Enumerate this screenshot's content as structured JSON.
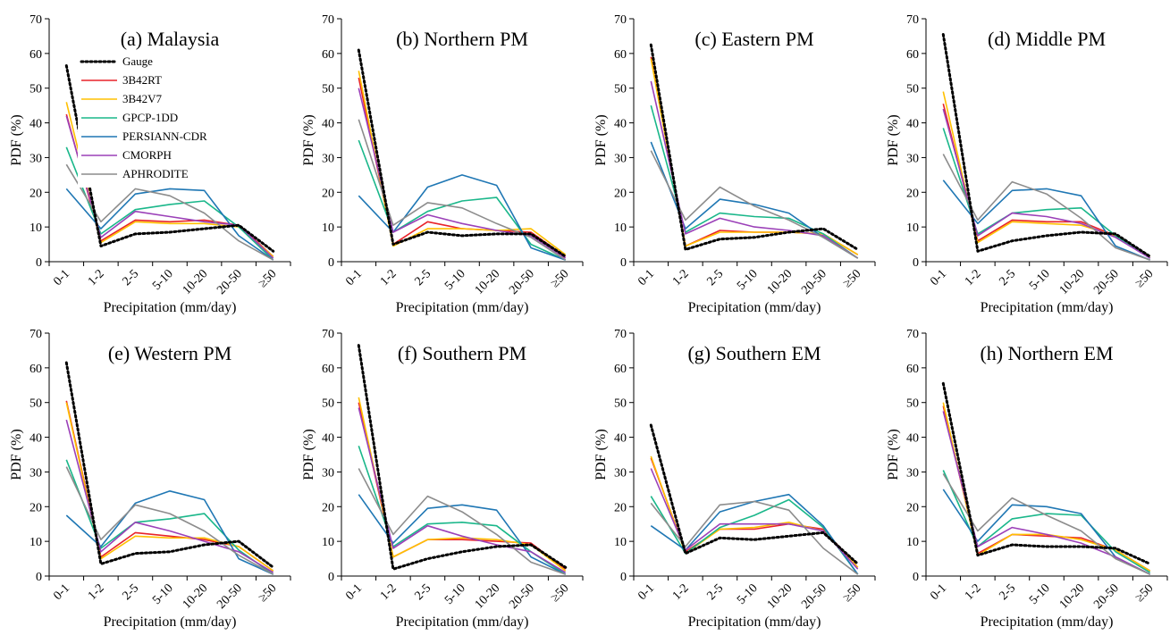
{
  "figure": {
    "legend": [
      {
        "name": "Gauge",
        "color": "#000000",
        "dashed": true
      },
      {
        "name": "3B42RT",
        "color": "#e8232a",
        "dashed": false
      },
      {
        "name": "3B42V7",
        "color": "#ffc000",
        "dashed": false
      },
      {
        "name": "GPCP-1DD",
        "color": "#1ab78a",
        "dashed": false
      },
      {
        "name": "PERSIANN-CDR",
        "color": "#1f77b4",
        "dashed": false
      },
      {
        "name": "CMORPH",
        "color": "#9b40b8",
        "dashed": false
      },
      {
        "name": "APHRODITE",
        "color": "#8c8c8c",
        "dashed": false
      }
    ]
  },
  "chart_data": [
    {
      "type": "line",
      "title": "(a) Malaysia",
      "xlabel": "Precipitation (mm/day)",
      "ylabel": "PDF (%)",
      "ylim": [
        0,
        70
      ],
      "yticks": [
        0,
        10,
        20,
        30,
        40,
        50,
        60,
        70
      ],
      "categories": [
        "0-1",
        "1-2",
        "2-5",
        "5-10",
        "10-20",
        "20-50",
        "≥50"
      ],
      "legend_position": "top-left",
      "series": [
        {
          "name": "Gauge",
          "values": [
            56.5,
            4.5,
            8.0,
            8.5,
            9.5,
            10.5,
            3.0
          ]
        },
        {
          "name": "3B42RT",
          "values": [
            42.5,
            6.0,
            12.0,
            11.5,
            12.0,
            10.5,
            1.5
          ]
        },
        {
          "name": "3B42V7",
          "values": [
            46.0,
            5.5,
            11.5,
            11.0,
            11.0,
            10.0,
            1.5
          ]
        },
        {
          "name": "GPCP-1DD",
          "values": [
            33.0,
            8.0,
            15.0,
            16.5,
            17.5,
            10.0,
            0.5
          ]
        },
        {
          "name": "PERSIANN-CDR",
          "values": [
            21.0,
            9.5,
            19.5,
            21.0,
            20.5,
            7.5,
            0.5
          ]
        },
        {
          "name": "CMORPH",
          "values": [
            42.0,
            7.0,
            14.5,
            13.0,
            11.5,
            10.5,
            1.0
          ]
        },
        {
          "name": "APHRODITE",
          "values": [
            28.0,
            11.5,
            21.0,
            19.0,
            14.0,
            6.0,
            0.5
          ]
        }
      ]
    },
    {
      "type": "line",
      "title": "(b) Northern PM",
      "xlabel": "Precipitation (mm/day)",
      "ylabel": "PDF (%)",
      "ylim": [
        0,
        70
      ],
      "yticks": [
        0,
        10,
        20,
        30,
        40,
        50,
        60,
        70
      ],
      "categories": [
        "0-1",
        "1-2",
        "2-5",
        "5-10",
        "10-20",
        "20-50",
        "≥50"
      ],
      "series": [
        {
          "name": "Gauge",
          "values": [
            61.0,
            5.0,
            8.5,
            7.5,
            8.0,
            8.0,
            1.5
          ]
        },
        {
          "name": "3B42RT",
          "values": [
            53.0,
            5.0,
            11.5,
            9.5,
            9.0,
            8.5,
            1.5
          ]
        },
        {
          "name": "3B42V7",
          "values": [
            55.0,
            4.5,
            9.5,
            9.5,
            9.0,
            9.5,
            2.0
          ]
        },
        {
          "name": "GPCP-1DD",
          "values": [
            35.0,
            8.5,
            14.5,
            17.5,
            18.5,
            5.0,
            0.5
          ]
        },
        {
          "name": "PERSIANN-CDR",
          "values": [
            19.0,
            8.5,
            21.5,
            25.0,
            22.0,
            4.0,
            0.5
          ]
        },
        {
          "name": "CMORPH",
          "values": [
            50.0,
            8.5,
            13.5,
            11.0,
            9.0,
            7.5,
            1.0
          ]
        },
        {
          "name": "APHRODITE",
          "values": [
            41.0,
            10.5,
            17.0,
            15.5,
            11.0,
            7.0,
            0.5
          ]
        }
      ]
    },
    {
      "type": "line",
      "title": "(c) Eastern PM",
      "xlabel": "Precipitation (mm/day)",
      "ylabel": "PDF (%)",
      "ylim": [
        0,
        70
      ],
      "yticks": [
        0,
        10,
        20,
        30,
        40,
        50,
        60,
        70
      ],
      "categories": [
        "0-1",
        "1-2",
        "2-5",
        "5-10",
        "10-20",
        "20-50",
        "≥50"
      ],
      "series": [
        {
          "name": "Gauge",
          "values": [
            62.5,
            3.5,
            6.5,
            7.0,
            8.5,
            9.5,
            3.5
          ]
        },
        {
          "name": "3B42RT",
          "values": [
            59.0,
            4.5,
            9.0,
            8.5,
            8.5,
            8.0,
            2.0
          ]
        },
        {
          "name": "3B42V7",
          "values": [
            58.5,
            4.5,
            8.5,
            8.5,
            8.5,
            8.0,
            2.0
          ]
        },
        {
          "name": "GPCP-1DD",
          "values": [
            45.0,
            8.5,
            14.0,
            13.0,
            12.5,
            8.0,
            1.0
          ]
        },
        {
          "name": "PERSIANN-CDR",
          "values": [
            34.5,
            9.5,
            18.0,
            16.5,
            14.0,
            7.0,
            1.0
          ]
        },
        {
          "name": "CMORPH",
          "values": [
            52.0,
            8.0,
            12.5,
            10.0,
            9.0,
            7.5,
            1.0
          ]
        },
        {
          "name": "APHRODITE",
          "values": [
            32.0,
            12.0,
            21.5,
            16.0,
            12.0,
            7.0,
            1.0
          ]
        }
      ]
    },
    {
      "type": "line",
      "title": "(d) Middle PM",
      "xlabel": "Precipitation (mm/day)",
      "ylabel": "PDF (%)",
      "ylim": [
        0,
        70
      ],
      "yticks": [
        0,
        10,
        20,
        30,
        40,
        50,
        60,
        70
      ],
      "categories": [
        "0-1",
        "1-2",
        "2-5",
        "5-10",
        "10-20",
        "20-50",
        "≥50"
      ],
      "series": [
        {
          "name": "Gauge",
          "values": [
            65.5,
            3.0,
            6.0,
            7.5,
            8.5,
            8.0,
            1.5
          ]
        },
        {
          "name": "3B42RT",
          "values": [
            45.5,
            6.0,
            12.0,
            11.5,
            11.5,
            7.5,
            1.0
          ]
        },
        {
          "name": "3B42V7",
          "values": [
            49.0,
            5.5,
            11.5,
            11.0,
            10.5,
            7.5,
            1.5
          ]
        },
        {
          "name": "GPCP-1DD",
          "values": [
            38.5,
            8.0,
            14.0,
            15.0,
            15.5,
            7.5,
            1.0
          ]
        },
        {
          "name": "PERSIANN-CDR",
          "values": [
            23.5,
            11.0,
            20.5,
            21.0,
            19.0,
            4.5,
            0.5
          ]
        },
        {
          "name": "CMORPH",
          "values": [
            44.0,
            7.5,
            14.0,
            13.0,
            11.0,
            7.0,
            1.0
          ]
        },
        {
          "name": "APHRODITE",
          "values": [
            31.0,
            12.0,
            23.0,
            19.5,
            12.5,
            4.0,
            0.5
          ]
        }
      ]
    },
    {
      "type": "line",
      "title": "(e) Western PM",
      "xlabel": "Precipitation (mm/day)",
      "ylabel": "PDF (%)",
      "ylim": [
        0,
        70
      ],
      "yticks": [
        0,
        10,
        20,
        30,
        40,
        50,
        60,
        70
      ],
      "categories": [
        "0-1",
        "1-2",
        "2-5",
        "5-10",
        "10-20",
        "20-50",
        "≥50"
      ],
      "series": [
        {
          "name": "Gauge",
          "values": [
            61.5,
            3.5,
            6.5,
            7.0,
            9.0,
            10.0,
            2.5
          ]
        },
        {
          "name": "3B42RT",
          "values": [
            50.5,
            5.5,
            12.5,
            11.5,
            10.5,
            8.5,
            1.5
          ]
        },
        {
          "name": "3B42V7",
          "values": [
            50.0,
            5.0,
            11.5,
            11.0,
            11.0,
            8.5,
            1.5
          ]
        },
        {
          "name": "GPCP-1DD",
          "values": [
            33.5,
            8.0,
            15.5,
            16.5,
            18.0,
            7.5,
            0.5
          ]
        },
        {
          "name": "PERSIANN-CDR",
          "values": [
            17.5,
            8.5,
            21.0,
            24.5,
            22.0,
            5.0,
            0.5
          ]
        },
        {
          "name": "CMORPH",
          "values": [
            45.0,
            7.0,
            15.5,
            13.0,
            10.0,
            7.0,
            1.0
          ]
        },
        {
          "name": "APHRODITE",
          "values": [
            31.5,
            10.5,
            20.5,
            18.0,
            13.0,
            6.0,
            0.5
          ]
        }
      ]
    },
    {
      "type": "line",
      "title": "(f) Southern PM",
      "xlabel": "Precipitation (mm/day)",
      "ylabel": "PDF (%)",
      "ylim": [
        0,
        70
      ],
      "yticks": [
        0,
        10,
        20,
        30,
        40,
        50,
        60,
        70
      ],
      "categories": [
        "0-1",
        "1-2",
        "2-5",
        "5-10",
        "10-20",
        "20-50",
        "≥50"
      ],
      "series": [
        {
          "name": "Gauge",
          "values": [
            66.5,
            2.0,
            5.0,
            7.0,
            8.5,
            9.0,
            2.5
          ]
        },
        {
          "name": "3B42RT",
          "values": [
            50.0,
            5.5,
            10.5,
            10.5,
            10.0,
            9.5,
            2.0
          ]
        },
        {
          "name": "3B42V7",
          "values": [
            51.5,
            5.5,
            10.5,
            11.0,
            10.5,
            9.0,
            1.5
          ]
        },
        {
          "name": "GPCP-1DD",
          "values": [
            37.5,
            8.5,
            15.0,
            15.5,
            14.5,
            7.0,
            0.5
          ]
        },
        {
          "name": "PERSIANN-CDR",
          "values": [
            23.5,
            9.5,
            19.5,
            20.5,
            19.0,
            5.5,
            0.5
          ]
        },
        {
          "name": "CMORPH",
          "values": [
            48.5,
            8.0,
            14.5,
            11.5,
            9.0,
            7.0,
            1.0
          ]
        },
        {
          "name": "APHRODITE",
          "values": [
            31.0,
            12.0,
            23.0,
            18.5,
            12.0,
            4.0,
            0.5
          ]
        }
      ]
    },
    {
      "type": "line",
      "title": "(g) Southern EM",
      "xlabel": "Precipitation (mm/day)",
      "ylabel": "PDF (%)",
      "ylim": [
        0,
        70
      ],
      "yticks": [
        0,
        10,
        20,
        30,
        40,
        50,
        60,
        70
      ],
      "categories": [
        "0-1",
        "1-2",
        "2-5",
        "5-10",
        "10-20",
        "20-50",
        "≥50"
      ],
      "series": [
        {
          "name": "Gauge",
          "values": [
            43.5,
            6.5,
            11.0,
            10.5,
            11.5,
            12.5,
            3.5
          ]
        },
        {
          "name": "3B42RT",
          "values": [
            34.0,
            7.0,
            13.5,
            13.5,
            15.0,
            13.5,
            2.5
          ]
        },
        {
          "name": "3B42V7",
          "values": [
            34.5,
            6.5,
            13.5,
            14.0,
            15.5,
            13.0,
            2.5
          ]
        },
        {
          "name": "GPCP-1DD",
          "values": [
            23.0,
            6.5,
            14.0,
            17.5,
            22.0,
            14.0,
            0.5
          ]
        },
        {
          "name": "PERSIANN-CDR",
          "values": [
            14.5,
            7.5,
            18.5,
            21.5,
            23.5,
            14.5,
            0.5
          ]
        },
        {
          "name": "CMORPH",
          "values": [
            31.0,
            7.5,
            15.0,
            15.0,
            15.0,
            13.0,
            2.0
          ]
        },
        {
          "name": "APHRODITE",
          "values": [
            21.0,
            8.5,
            20.5,
            21.5,
            19.0,
            8.0,
            0.5
          ]
        }
      ]
    },
    {
      "type": "line",
      "title": "(h) Northern EM",
      "xlabel": "Precipitation (mm/day)",
      "ylabel": "PDF (%)",
      "ylim": [
        0,
        70
      ],
      "yticks": [
        0,
        10,
        20,
        30,
        40,
        50,
        60,
        70
      ],
      "categories": [
        "0-1",
        "1-2",
        "2-5",
        "5-10",
        "10-20",
        "20-50",
        "≥50"
      ],
      "series": [
        {
          "name": "Gauge",
          "values": [
            55.5,
            6.0,
            9.0,
            8.5,
            8.5,
            8.0,
            3.5
          ]
        },
        {
          "name": "3B42RT",
          "values": [
            49.0,
            6.5,
            12.0,
            11.5,
            11.0,
            7.5,
            1.5
          ]
        },
        {
          "name": "3B42V7",
          "values": [
            50.0,
            6.0,
            12.0,
            12.0,
            10.5,
            7.5,
            1.5
          ]
        },
        {
          "name": "GPCP-1DD",
          "values": [
            30.5,
            8.5,
            16.5,
            18.0,
            17.5,
            7.0,
            1.0
          ]
        },
        {
          "name": "PERSIANN-CDR",
          "values": [
            25.0,
            10.0,
            20.5,
            20.0,
            18.0,
            5.5,
            0.5
          ]
        },
        {
          "name": "CMORPH",
          "values": [
            47.5,
            8.5,
            14.0,
            12.0,
            9.5,
            5.5,
            0.5
          ]
        },
        {
          "name": "APHRODITE",
          "values": [
            29.5,
            13.0,
            22.5,
            17.5,
            13.0,
            5.0,
            0.5
          ]
        }
      ]
    }
  ]
}
